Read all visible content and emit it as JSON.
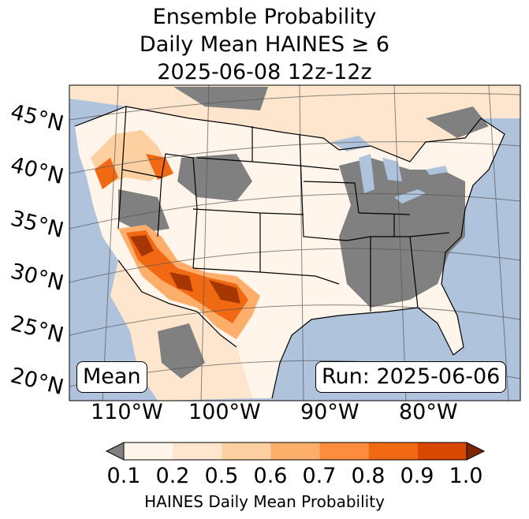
{
  "title": {
    "line1": "Ensemble Probability",
    "line2": "Daily Mean HAINES ≥ 6",
    "line3": "2025-06-08 12z-12z"
  },
  "map": {
    "region": "Contiguous United States",
    "ocean_color": "#afc3dc",
    "land_low_color": "#ffffff",
    "no_data_color": "#808080",
    "lat_labels": [
      "45°N",
      "40°N",
      "35°N",
      "30°N",
      "25°N",
      "20°N"
    ],
    "lon_labels": [
      "110°W",
      "100°W",
      "90°W",
      "80°W"
    ],
    "mean_label": "Mean",
    "run_label": "Run: 2025-06-06"
  },
  "colorbar": {
    "ticks": [
      "0.1",
      "0.2",
      "0.5",
      "0.6",
      "0.7",
      "0.8",
      "0.9",
      "1.0"
    ],
    "colors": [
      "#fff5eb",
      "#fee6ce",
      "#fdd0a2",
      "#fdae6b",
      "#fd8d3c",
      "#f16913",
      "#d94801",
      "#a63603"
    ],
    "under_color": "#808080",
    "label": "HAINES Daily Mean Probability"
  }
}
